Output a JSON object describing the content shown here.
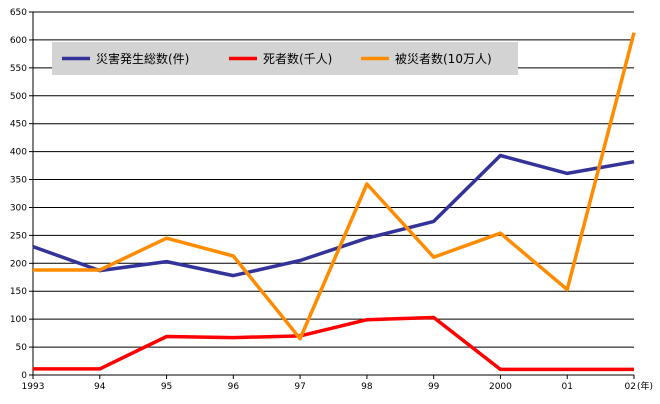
{
  "chart_data": {
    "type": "line",
    "categories": [
      "1993",
      "94",
      "95",
      "96",
      "97",
      "98",
      "99",
      "2000",
      "01",
      "02"
    ],
    "x_unit_label": "(年)",
    "ylim": [
      0,
      650
    ],
    "y_ticks": [
      0,
      50,
      100,
      150,
      200,
      250,
      300,
      350,
      400,
      450,
      500,
      550,
      600,
      650
    ],
    "grid": true,
    "legend_position": "top-left",
    "series": [
      {
        "name": "災害発生総数(件)",
        "color": "#333399",
        "values": [
          230,
          187,
          203,
          178,
          205,
          245,
          275,
          393,
          361,
          382
        ]
      },
      {
        "name": "死者数(千人)",
        "color": "#ff0000",
        "values": [
          11,
          11,
          69,
          67,
          70,
          99,
          103,
          10,
          10,
          10
        ]
      },
      {
        "name": "被災者数(10万人)",
        "color": "#ff8c00",
        "values": [
          188,
          188,
          245,
          213,
          65,
          342,
          211,
          254,
          153,
          613
        ]
      }
    ]
  }
}
